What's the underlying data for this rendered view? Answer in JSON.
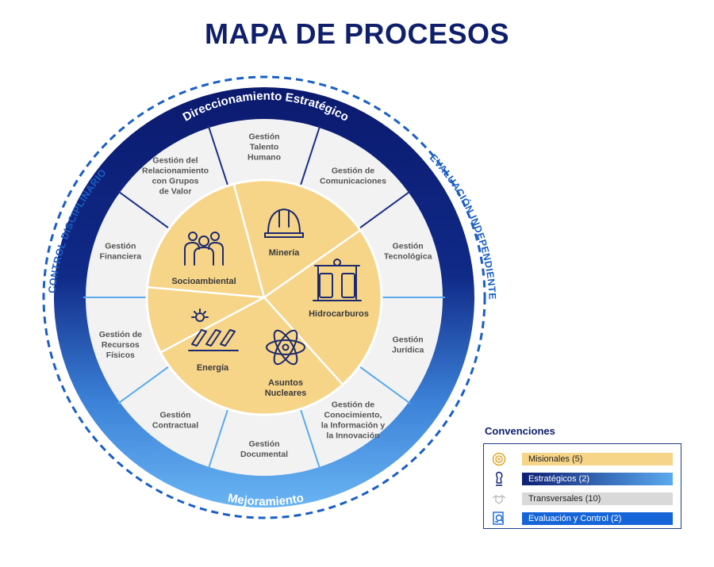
{
  "title": "MAPA DE PROCESOS",
  "ring": {
    "top_label": "Direccionamiento Estratégico",
    "bottom_label": "Mejoramiento",
    "left_label": "CONTROL DISCIPLINARIO",
    "right_label": "EVALUACIÓN INDEPENDIENTE"
  },
  "segments": [
    {
      "lines": [
        "Gestión",
        "Talento",
        "Humano"
      ]
    },
    {
      "lines": [
        "Gestión de",
        "Comunicaciones"
      ]
    },
    {
      "lines": [
        "Gestión",
        "Tecnológica"
      ]
    },
    {
      "lines": [
        "Gestión",
        "Jurídica"
      ]
    },
    {
      "lines": [
        "Gestión de",
        "Conocimiento,",
        "la Información y",
        "la Innovación"
      ]
    },
    {
      "lines": [
        "Gestión",
        "Documental"
      ]
    },
    {
      "lines": [
        "Gestión",
        "Contractual"
      ]
    },
    {
      "lines": [
        "Gestión de",
        "Recursos",
        "Físicos"
      ]
    },
    {
      "lines": [
        "Gestión",
        "Financiera"
      ]
    },
    {
      "lines": [
        "Gestión del",
        "Relacionamiento",
        "con Grupos",
        "de Valor"
      ]
    }
  ],
  "core": [
    {
      "lines": [
        "Minería"
      ],
      "icon": "hard-hat-icon"
    },
    {
      "lines": [
        "Hidrocarburos"
      ],
      "icon": "fuel-pump-icon"
    },
    {
      "lines": [
        "Asuntos",
        "Nucleares"
      ],
      "icon": "atom-icon"
    },
    {
      "lines": [
        "Energía"
      ],
      "icon": "solar-panel-icon"
    },
    {
      "lines": [
        "Socioambiental"
      ],
      "icon": "people-group-icon"
    }
  ],
  "legend": {
    "title": "Convenciones",
    "items": [
      {
        "label": "Misionales (5)",
        "icon": "target-icon"
      },
      {
        "label": "Estratégicos (2)",
        "icon": "chess-piece-icon"
      },
      {
        "label": "Transversales (10)",
        "icon": "handshake-icon"
      },
      {
        "label": "Evaluación y Control (2)",
        "icon": "magnifier-report-icon"
      }
    ]
  },
  "colors": {
    "navy": "#0d1f73",
    "light_blue": "#5aaaf0",
    "core_yellow": "#f6d488",
    "segment_gray": "#f2f2f2",
    "outer_dashed": "#1a5fc4",
    "control_blue": "#1565d8"
  }
}
